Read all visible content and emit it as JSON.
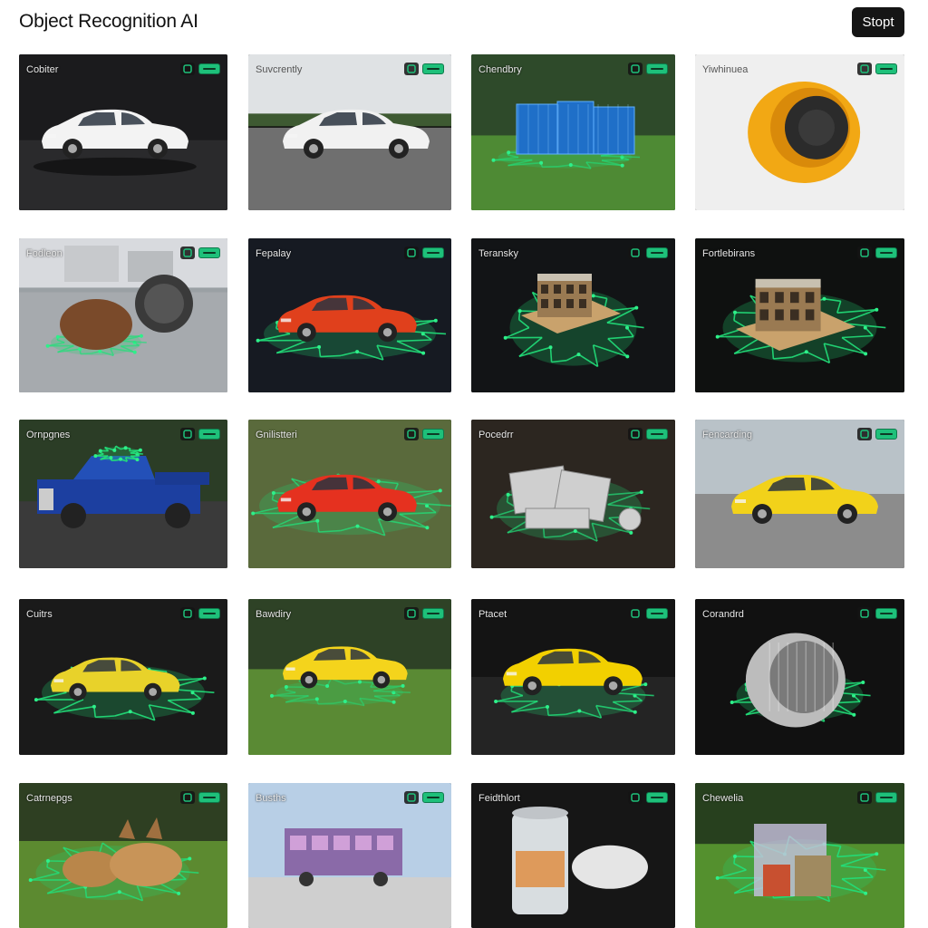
{
  "app": {
    "title": "Object Recognition AI",
    "start_label": "Stopt"
  },
  "accent_color": "#1ec07a",
  "tiles": [
    {
      "label": "Cobiter",
      "scene": "car-studio-dark",
      "icon": "scan-icon"
    },
    {
      "label": "Suvcrently",
      "scene": "car-road-outdoor",
      "icon": "scan-icon"
    },
    {
      "label": "Chendbry",
      "scene": "blue-crates-grass",
      "icon": "scan-icon"
    },
    {
      "label": "Yiwhinuea",
      "scene": "yellow-speaker-studio",
      "icon": "scan-icon"
    },
    {
      "label": "Fodleon",
      "scene": "bear-and-disc-court",
      "icon": "scan-icon"
    },
    {
      "label": "Fepalay",
      "scene": "red-car-mesh-dark",
      "icon": "scan-icon"
    },
    {
      "label": "Teransky",
      "scene": "building-model-mesh",
      "icon": "scan-icon"
    },
    {
      "label": "Fortlebirans",
      "scene": "building-model-mesh-2",
      "icon": "scan-icon"
    },
    {
      "label": "Ornpgnes",
      "scene": "blue-truck-lot",
      "icon": "scan-icon"
    },
    {
      "label": "Gnilistteri",
      "scene": "red-sportscar-grass",
      "icon": "scan-icon"
    },
    {
      "label": "Pocedrr",
      "scene": "silver-scrap-mesh",
      "icon": "scan-icon"
    },
    {
      "label": "Fencarding",
      "scene": "yellow-sedan-lot",
      "icon": "scan-icon"
    },
    {
      "label": "Cuitrs",
      "scene": "yellow-car-mesh-dark",
      "icon": "scan-icon"
    },
    {
      "label": "Bawdiry",
      "scene": "yellow-car-grass",
      "icon": "scan-icon"
    },
    {
      "label": "Ptacet",
      "scene": "yellow-hatch-dark",
      "icon": "scan-icon"
    },
    {
      "label": "Corandrd",
      "scene": "metal-drum-mesh",
      "icon": "scan-icon"
    },
    {
      "label": "Catrnepgs",
      "scene": "animals-grass",
      "icon": "scan-icon"
    },
    {
      "label": "Busths",
      "scene": "toy-bus-sky",
      "icon": "scan-icon"
    },
    {
      "label": "Feidthlort",
      "scene": "can-and-bowl",
      "icon": "scan-icon"
    },
    {
      "label": "Chewelia",
      "scene": "toy-set-grass",
      "icon": "scan-icon"
    }
  ]
}
